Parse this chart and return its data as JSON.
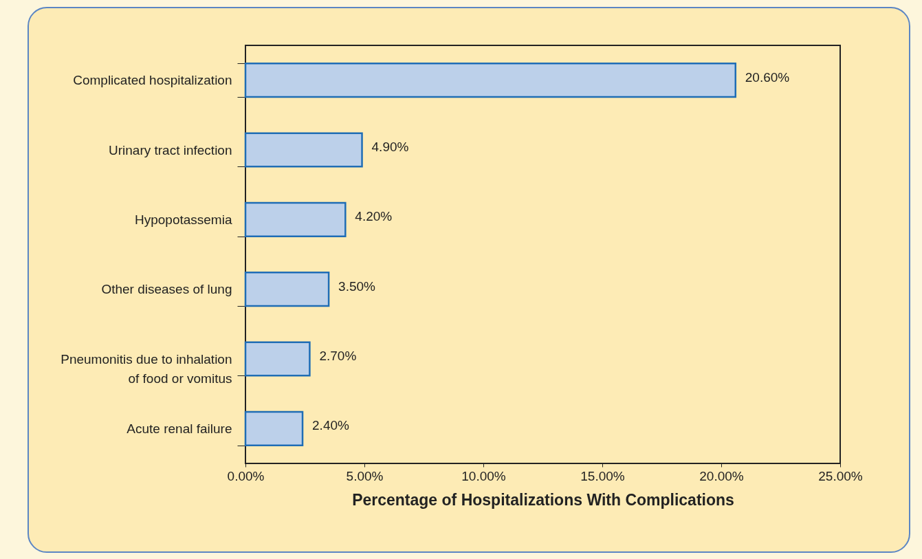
{
  "chart_data": {
    "type": "bar",
    "orientation": "horizontal",
    "categories": [
      "Complicated hospitalization",
      "Urinary tract infection",
      "Hypopotassemia",
      "Other diseases of lung",
      "Pneumonitis due to inhalation of food or vomitus",
      "Acute renal failure"
    ],
    "values": [
      20.6,
      4.9,
      4.2,
      3.5,
      2.7,
      2.4
    ],
    "value_labels": [
      "20.60%",
      "4.90%",
      "4.20%",
      "3.50%",
      "2.70%",
      "2.40%"
    ],
    "color": "#bcd0ea",
    "xlabel": "Percentage of Hospitalizations With Complications",
    "xlim": [
      0,
      25
    ],
    "xticks": [
      {
        "value": 0,
        "label": "0.00%"
      },
      {
        "value": 5,
        "label": "5.00%"
      },
      {
        "value": 10,
        "label": "10.00%"
      },
      {
        "value": 15,
        "label": "15.00%"
      },
      {
        "value": 20,
        "label": "20.00%"
      },
      {
        "value": 25,
        "label": "25.00%"
      }
    ],
    "grid": false
  }
}
